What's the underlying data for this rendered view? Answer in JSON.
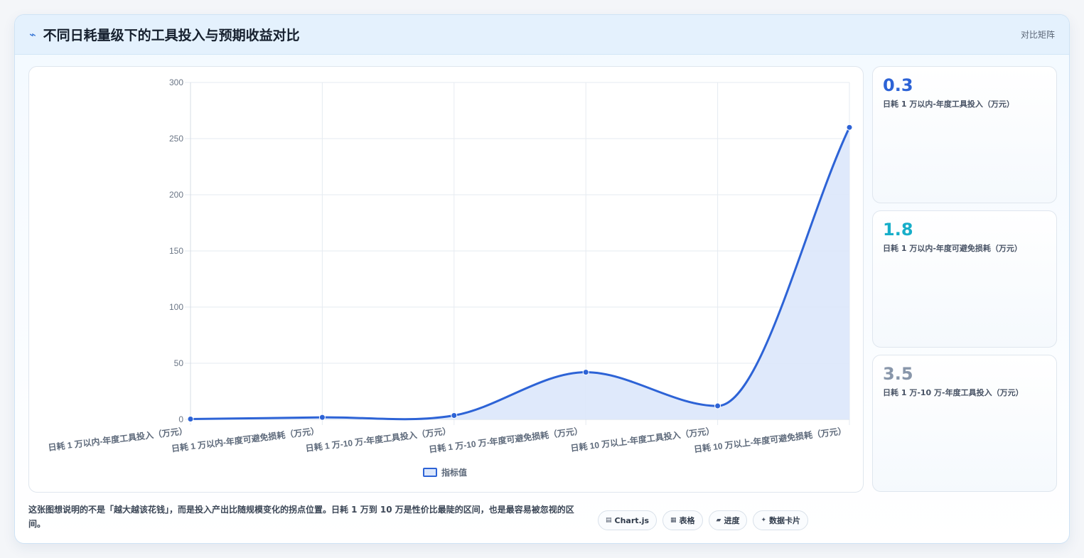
{
  "header": {
    "icon": "⌁",
    "title": "不同日耗量级下的工具投入与预期收益对比",
    "tag": "对比矩阵"
  },
  "chart_data": {
    "type": "area",
    "categories": [
      "日耗 1 万以内-年度工具投入（万元）",
      "日耗 1 万以内-年度可避免损耗（万元）",
      "日耗 1 万-10 万-年度工具投入（万元）",
      "日耗 1 万-10 万-年度可避免损耗（万元）",
      "日耗 10 万以上-年度工具投入（万元）",
      "日耗 10 万以上-年度可避免损耗（万元）"
    ],
    "series": [
      {
        "name": "指标值",
        "values": [
          0.3,
          1.8,
          3.5,
          42,
          12,
          260
        ]
      }
    ],
    "ylim": [
      0,
      300
    ],
    "yticks": [
      0,
      50,
      100,
      150,
      200,
      250,
      300
    ],
    "grid": true,
    "legend": "bottom",
    "colors": {
      "line": "#2d63d6",
      "fill": "#dce7fb"
    }
  },
  "stats": [
    {
      "value": "0.3",
      "label": "日耗 1 万以内-年度工具投入（万元）",
      "color": "#2d63d6"
    },
    {
      "value": "1.8",
      "label": "日耗 1 万以内-年度可避免损耗（万元）",
      "color": "#17aec9"
    },
    {
      "value": "3.5",
      "label": "日耗 1 万-10 万-年度工具投入（万元）",
      "color": "#8896aa"
    }
  ],
  "footer": {
    "note": "这张图想说明的不是「越大越该花钱」，而是投入产出比随规模变化的拐点位置。日耗 1 万到 10 万是性价比最陡的区间，也是最容易被忽视的区间。",
    "tags": [
      {
        "icon": "▤",
        "icon_name": "chart-icon",
        "label": "Chart.js"
      },
      {
        "icon": "▦",
        "icon_name": "table-icon",
        "label": "表格"
      },
      {
        "icon": "▰",
        "icon_name": "progress-icon",
        "label": "进度"
      },
      {
        "icon": "✦",
        "icon_name": "sparkle-icon",
        "label": "数据卡片"
      }
    ]
  }
}
